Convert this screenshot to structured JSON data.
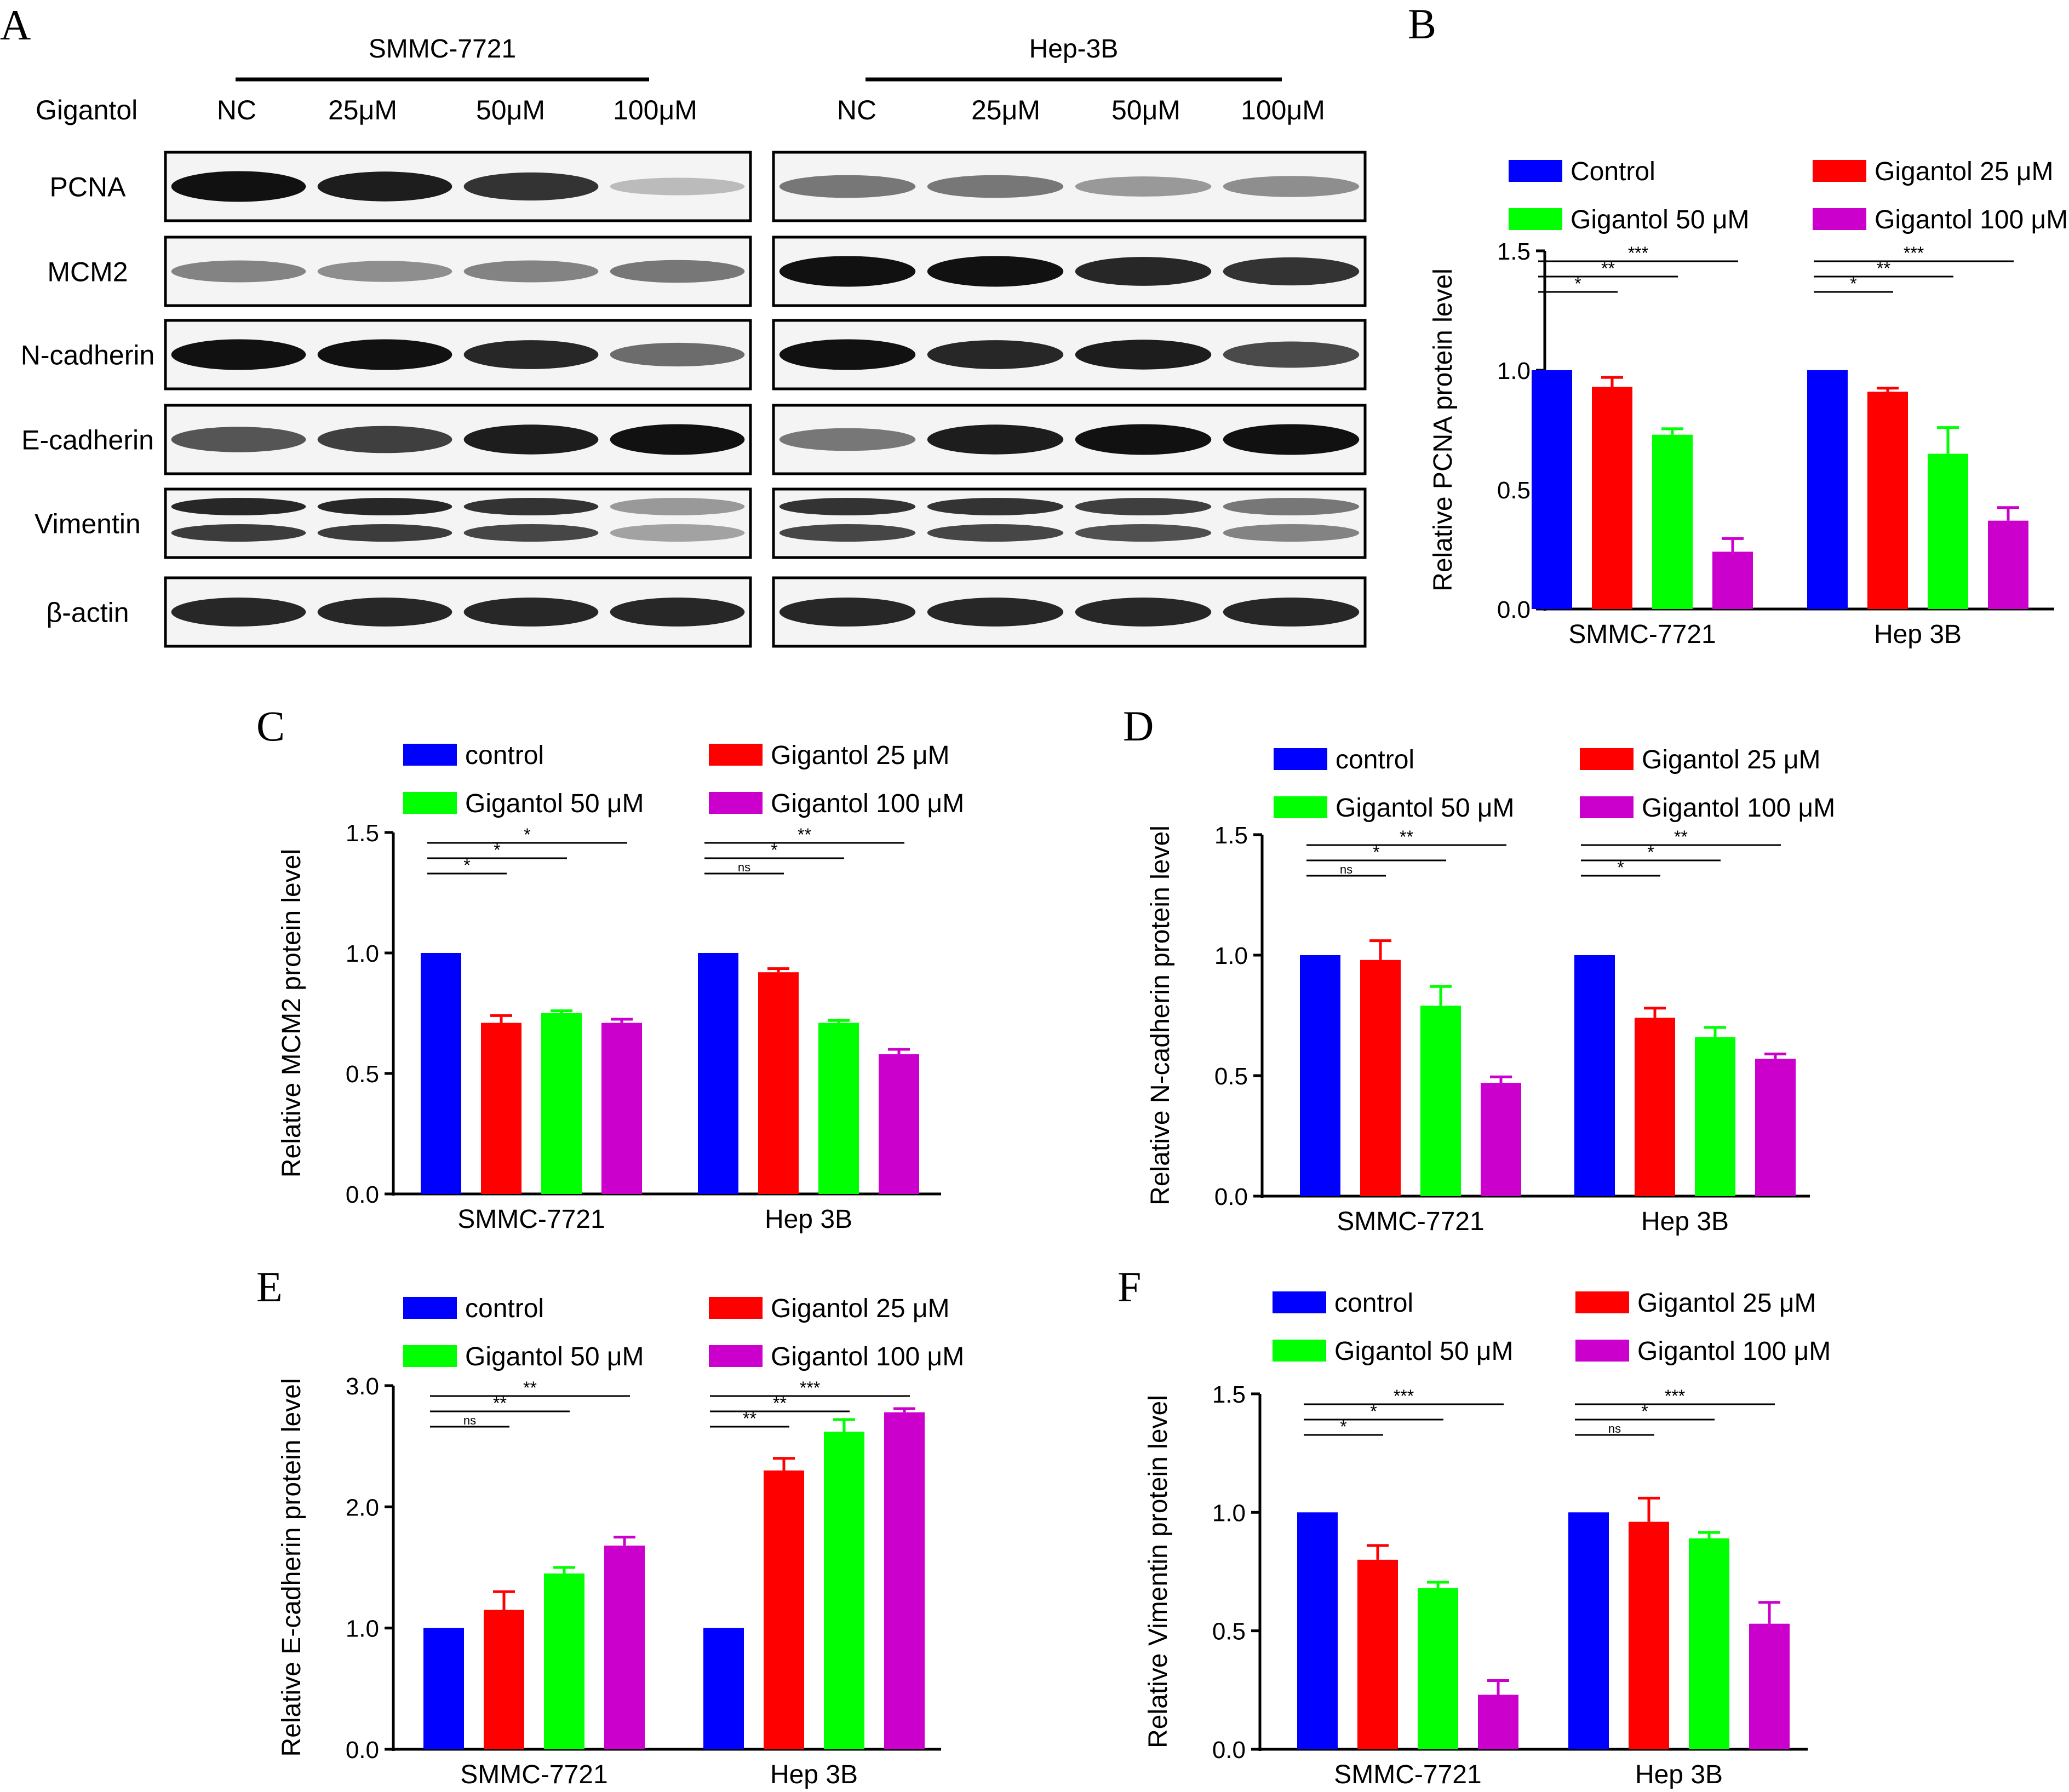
{
  "colors": {
    "blue": "#0000ff",
    "red": "#ff0000",
    "green": "#00ff00",
    "purple": "#cc00cc"
  },
  "blot": {
    "letter": "A",
    "row_label_header": "Gigantol",
    "cell_lines": [
      {
        "name": "SMMC-7721",
        "lanes": [
          "NC",
          "25μM",
          "50μM",
          "100μM"
        ]
      },
      {
        "name": "Hep-3B",
        "lanes": [
          "NC",
          "25μM",
          "50μM",
          "100μM"
        ]
      }
    ],
    "rows": [
      "PCNA",
      "MCM2",
      "N-cadherin",
      "E-cadherin",
      "Vimentin",
      "β-actin"
    ],
    "intensity": [
      [
        [
          1.0,
          0.95,
          0.85,
          0.25
        ],
        [
          0.55,
          0.55,
          0.4,
          0.45
        ]
      ],
      [
        [
          0.5,
          0.45,
          0.5,
          0.55
        ],
        [
          1.0,
          1.0,
          0.9,
          0.85
        ]
      ],
      [
        [
          1.0,
          1.0,
          0.9,
          0.6
        ],
        [
          1.0,
          0.9,
          0.95,
          0.75
        ]
      ],
      [
        [
          0.7,
          0.8,
          0.95,
          1.0
        ],
        [
          0.55,
          0.95,
          1.0,
          1.0
        ]
      ],
      [
        [
          0.9,
          0.9,
          0.85,
          0.4
        ],
        [
          0.85,
          0.85,
          0.8,
          0.55
        ]
      ],
      [
        [
          0.9,
          0.9,
          0.9,
          0.9
        ],
        [
          0.9,
          0.9,
          0.9,
          0.9
        ]
      ]
    ]
  },
  "chart_data": [
    {
      "letter": "B",
      "type": "bar",
      "ylabel": "Relative PCNA protein level",
      "ylim": [
        0,
        1.5
      ],
      "yticks": [
        "0.0",
        "0.5",
        "1.0",
        "1.5"
      ],
      "categories": [
        "SMMC-7721",
        "Hep 3B"
      ],
      "series": [
        {
          "name": "Control",
          "values": [
            1.0,
            1.0
          ],
          "errors": [
            0,
            0
          ]
        },
        {
          "name": "Gigantol 25 μM",
          "values": [
            0.93,
            0.91
          ],
          "errors": [
            0.04,
            0.015
          ]
        },
        {
          "name": "Gigantol 50 μM",
          "values": [
            0.73,
            0.65
          ],
          "errors": [
            0.025,
            0.11
          ]
        },
        {
          "name": "Gigantol 100 μM",
          "values": [
            0.24,
            0.37
          ],
          "errors": [
            0.055,
            0.055
          ]
        }
      ],
      "significance": [
        [
          "*",
          "**",
          "***"
        ],
        [
          "*",
          "**",
          "***"
        ]
      ]
    },
    {
      "letter": "C",
      "type": "bar",
      "ylabel": "Relative MCM2 protein level",
      "ylim": [
        0,
        1.5
      ],
      "yticks": [
        "0.0",
        "0.5",
        "1.0",
        "1.5"
      ],
      "categories": [
        "SMMC-7721",
        "Hep 3B"
      ],
      "series": [
        {
          "name": "control",
          "values": [
            1.0,
            1.0
          ],
          "errors": [
            0,
            0
          ]
        },
        {
          "name": "Gigantol 25 μM",
          "values": [
            0.71,
            0.92
          ],
          "errors": [
            0.03,
            0.015
          ]
        },
        {
          "name": "Gigantol 50 μM",
          "values": [
            0.75,
            0.71
          ],
          "errors": [
            0.01,
            0.01
          ]
        },
        {
          "name": "Gigantol 100 μM",
          "values": [
            0.71,
            0.58
          ],
          "errors": [
            0.015,
            0.02
          ]
        }
      ],
      "significance": [
        [
          "*",
          "*",
          "*"
        ],
        [
          "ns",
          "*",
          "**"
        ]
      ]
    },
    {
      "letter": "D",
      "type": "bar",
      "ylabel": "Relative N-cadherin protein level",
      "ylim": [
        0,
        1.5
      ],
      "yticks": [
        "0.0",
        "0.5",
        "1.0",
        "1.5"
      ],
      "categories": [
        "SMMC-7721",
        "Hep 3B"
      ],
      "series": [
        {
          "name": "control",
          "values": [
            1.0,
            1.0
          ],
          "errors": [
            0,
            0
          ]
        },
        {
          "name": "Gigantol 25 μM",
          "values": [
            0.98,
            0.74
          ],
          "errors": [
            0.08,
            0.04
          ]
        },
        {
          "name": "Gigantol 50 μM",
          "values": [
            0.79,
            0.66
          ],
          "errors": [
            0.08,
            0.04
          ]
        },
        {
          "name": "Gigantol 100 μM",
          "values": [
            0.47,
            0.57
          ],
          "errors": [
            0.025,
            0.02
          ]
        }
      ],
      "significance": [
        [
          "ns",
          "*",
          "**"
        ],
        [
          "*",
          "*",
          "**"
        ]
      ]
    },
    {
      "letter": "E",
      "type": "bar",
      "ylabel": "Relative E-cadherin protein level",
      "ylim": [
        0,
        3.0
      ],
      "yticks": [
        "0.0",
        "1.0",
        "2.0",
        "3.0"
      ],
      "categories": [
        "SMMC-7721",
        "Hep 3B"
      ],
      "series": [
        {
          "name": "control",
          "values": [
            1.0,
            1.0
          ],
          "errors": [
            0,
            0
          ]
        },
        {
          "name": "Gigantol 25 μM",
          "values": [
            1.15,
            2.3
          ],
          "errors": [
            0.15,
            0.1
          ]
        },
        {
          "name": "Gigantol 50 μM",
          "values": [
            1.45,
            2.62
          ],
          "errors": [
            0.05,
            0.1
          ]
        },
        {
          "name": "Gigantol 100 μM",
          "values": [
            1.68,
            2.78
          ],
          "errors": [
            0.07,
            0.03
          ]
        }
      ],
      "significance": [
        [
          "ns",
          "**",
          "**"
        ],
        [
          "**",
          "**",
          "***"
        ]
      ]
    },
    {
      "letter": "F",
      "type": "bar",
      "ylabel": "Relative Vimentin protein level",
      "ylim": [
        0,
        1.5
      ],
      "yticks": [
        "0.0",
        "0.5",
        "1.0",
        "1.5"
      ],
      "categories": [
        "SMMC-7721",
        "Hep 3B"
      ],
      "series": [
        {
          "name": "control",
          "values": [
            1.0,
            1.0
          ],
          "errors": [
            0,
            0
          ]
        },
        {
          "name": "Gigantol 25 μM",
          "values": [
            0.8,
            0.96
          ],
          "errors": [
            0.06,
            0.1
          ]
        },
        {
          "name": "Gigantol 50 μM",
          "values": [
            0.68,
            0.89
          ],
          "errors": [
            0.025,
            0.025
          ]
        },
        {
          "name": "Gigantol 100 μM",
          "values": [
            0.23,
            0.53
          ],
          "errors": [
            0.06,
            0.09
          ]
        }
      ],
      "significance": [
        [
          "*",
          "*",
          "***"
        ],
        [
          "ns",
          "*",
          "***"
        ]
      ]
    }
  ]
}
